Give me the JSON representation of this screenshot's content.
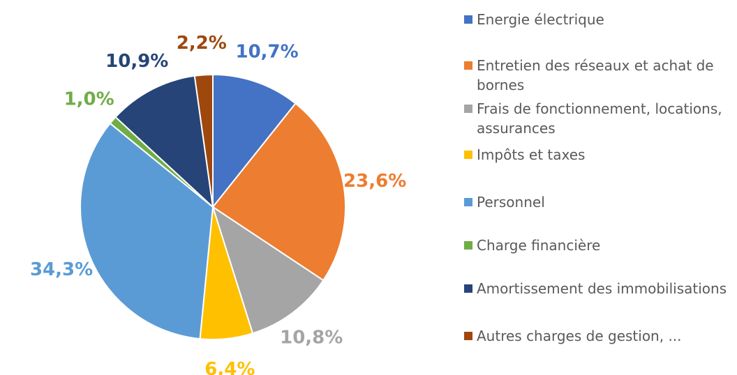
{
  "chart_data": {
    "type": "pie",
    "categories": [
      "Energie électrique",
      "Entretien des réseaux et achat de bornes",
      "Frais de fonctionnement, locations, assurances",
      "Impôts et taxes",
      "Personnel",
      "Charge financière",
      "Amortissement des immobilisations",
      "Autres charges de gestion, ..."
    ],
    "values": [
      10.7,
      23.6,
      10.8,
      6.4,
      34.3,
      1.0,
      10.9,
      2.2
    ],
    "value_labels": [
      "10,7%",
      "23,6%",
      "10,8%",
      "6,4%",
      "34,3%",
      "1,0%",
      "10,9%",
      "2,2%"
    ],
    "colors": [
      "#4472c4",
      "#ed7d31",
      "#a5a5a5",
      "#ffc000",
      "#5b9bd5",
      "#70ad47",
      "#264478",
      "#9e480e"
    ],
    "legend": "right"
  }
}
